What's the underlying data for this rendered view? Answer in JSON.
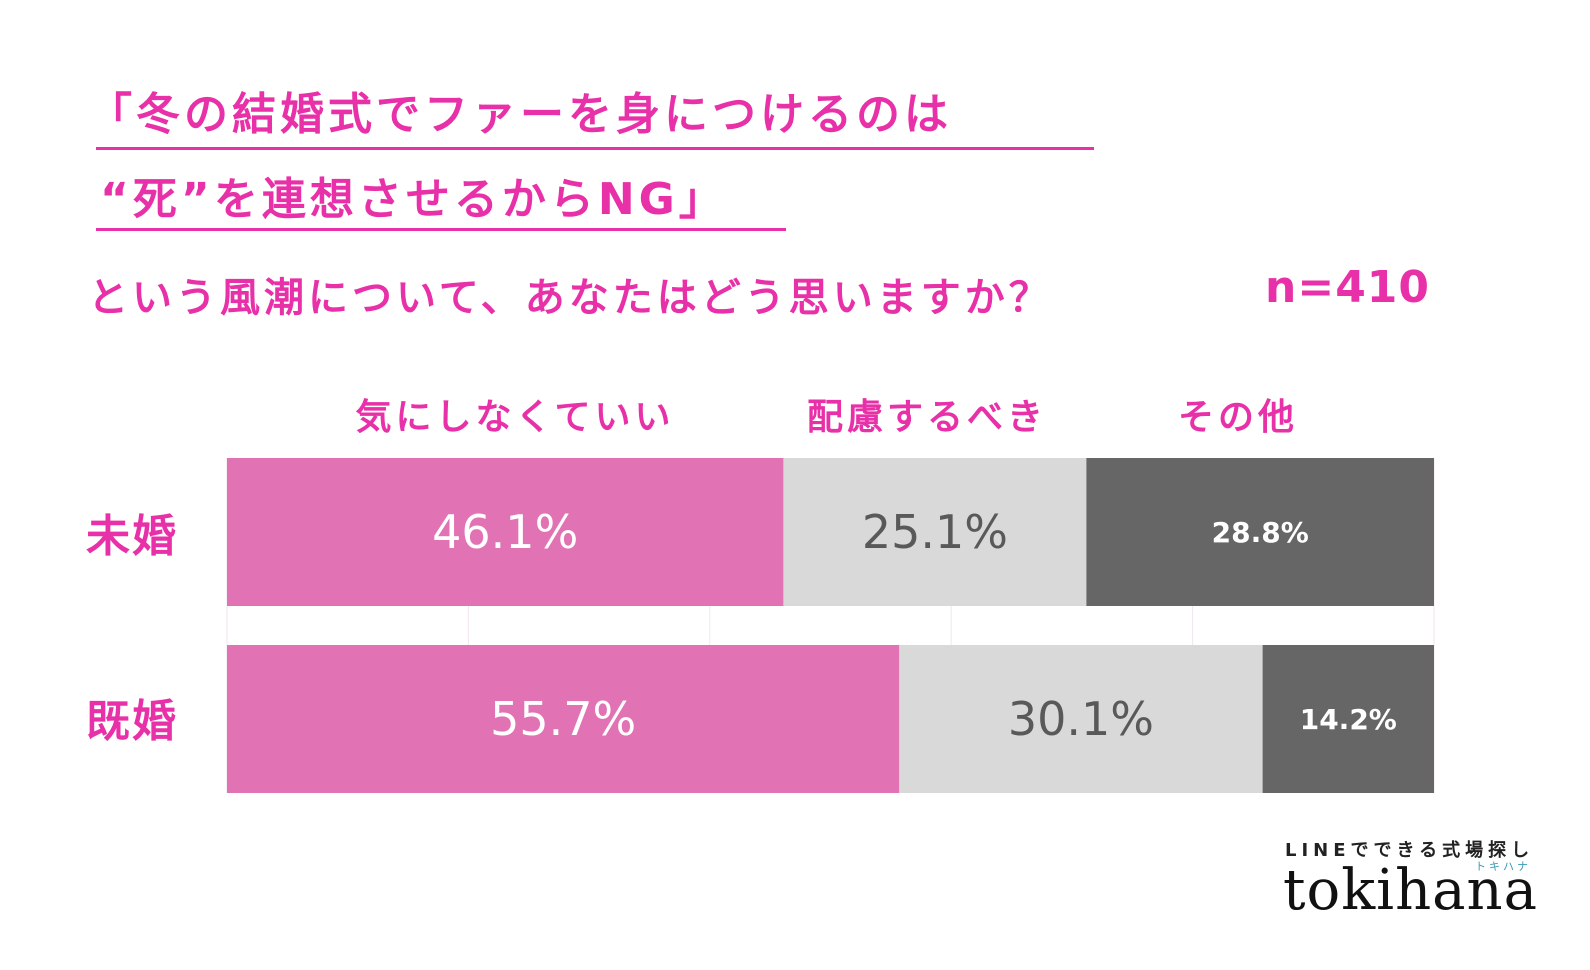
{
  "header": {
    "title_line1": "「冬の結婚式でファーを身につけるのは",
    "title_line2": "“死”を連想させるからNG」",
    "question": "という風潮について、あなたはどう思いますか？",
    "sample_size": "n=410"
  },
  "colors": {
    "accent": "#e830a8",
    "series": [
      "#e173b4",
      "#d9d9d9",
      "#666666"
    ],
    "label_colors": [
      "#ffffff",
      "#595959",
      "#ffffff"
    ]
  },
  "chart_data": {
    "type": "bar",
    "orientation": "horizontal",
    "stacked": true,
    "categories": [
      "未婚",
      "既婚"
    ],
    "series": [
      {
        "name": "気にしなくていい",
        "values": [
          46.1,
          55.7
        ]
      },
      {
        "name": "配慮するべき",
        "values": [
          25.1,
          30.1
        ]
      },
      {
        "name": "その他",
        "values": [
          28.8,
          14.2
        ]
      }
    ],
    "data_labels": [
      [
        "46.1%",
        "55.7%"
      ],
      [
        "25.1%",
        "30.1%"
      ],
      [
        "28.8%",
        "14.2%"
      ]
    ],
    "xlim": [
      0,
      100
    ],
    "legend_position": "top"
  },
  "brand": {
    "tagline": "LINEでできる式場探し",
    "kana": "トキハナ",
    "logo": "tokihana"
  }
}
